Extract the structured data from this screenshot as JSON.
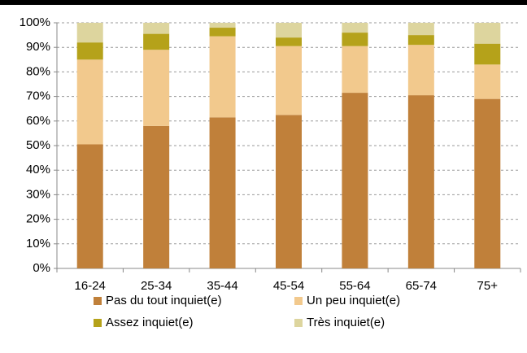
{
  "chart_data": {
    "type": "stacked_bar",
    "categories": [
      "16-24",
      "25-34",
      "35-44",
      "45-54",
      "55-64",
      "65-74",
      "75+"
    ],
    "series": [
      {
        "name": "Pas du tout inquiet(e)",
        "color": "#c0803a",
        "values": [
          50.5,
          58,
          61.5,
          62.5,
          71.5,
          70.5,
          69
        ]
      },
      {
        "name": "Un peu inquiet(e)",
        "color": "#f2c98d",
        "values": [
          34.5,
          31,
          33,
          28,
          19,
          20.5,
          14
        ]
      },
      {
        "name": "Assez inquiet(e)",
        "color": "#b5a21a",
        "values": [
          7,
          6.5,
          3.5,
          3.5,
          5.5,
          4,
          8.5
        ]
      },
      {
        "name": "Très inquiet(e)",
        "color": "#ddd59e",
        "values": [
          8,
          4.5,
          2,
          6,
          4,
          5,
          8.5
        ]
      }
    ],
    "ylim": [
      0,
      100
    ],
    "yticks": [
      {
        "value": 0,
        "label": "0%"
      },
      {
        "value": 10,
        "label": "10%"
      },
      {
        "value": 20,
        "label": "20%"
      },
      {
        "value": 30,
        "label": "30%"
      },
      {
        "value": 40,
        "label": "40%"
      },
      {
        "value": 50,
        "label": "50%"
      },
      {
        "value": 60,
        "label": "60%"
      },
      {
        "value": 70,
        "label": "70%"
      },
      {
        "value": 80,
        "label": "80%"
      },
      {
        "value": 90,
        "label": "90%"
      },
      {
        "value": 100,
        "label": "100%"
      }
    ],
    "grid": true
  }
}
